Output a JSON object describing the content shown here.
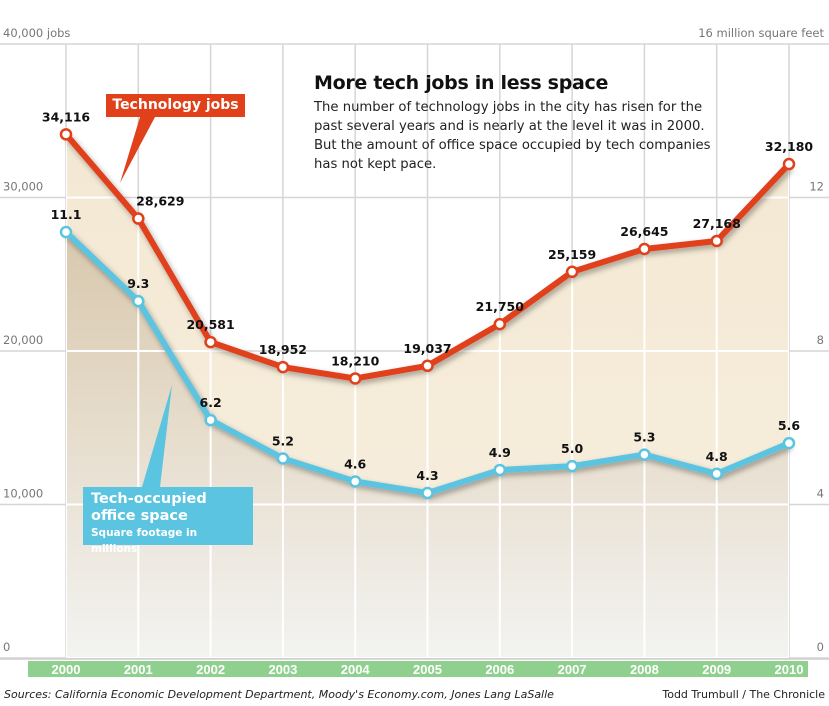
{
  "chart_data": {
    "type": "line",
    "title": "More tech jobs in less space",
    "subtitle": "The number of technology jobs in the city has risen for the past several years and is nearly at the level it was in 2000. But the amount of office space occupied by tech companies has not kept pace.",
    "x": [
      "2000",
      "2001",
      "2002",
      "2003",
      "2004",
      "2005",
      "2006",
      "2007",
      "2008",
      "2009",
      "2010"
    ],
    "left_axis": {
      "ylim": [
        0,
        40000
      ],
      "ticks": [
        "0",
        "10,000",
        "20,000",
        "30,000",
        "40,000 jobs"
      ],
      "values": [
        0,
        10000,
        20000,
        30000,
        40000
      ]
    },
    "right_axis": {
      "ylim": [
        0,
        16
      ],
      "ticks": [
        "0",
        "4",
        "8",
        "12",
        "16 million square feet"
      ],
      "values": [
        0,
        4,
        8,
        12,
        16
      ]
    },
    "series": [
      {
        "name": "Technology jobs",
        "axis": "left",
        "color": "#e0401a",
        "values": [
          34116,
          28629,
          20581,
          18952,
          18210,
          19037,
          21750,
          25159,
          26645,
          27168,
          32180
        ],
        "labels": [
          "34,116",
          "28,629",
          "20,581",
          "18,952",
          "18,210",
          "19,037",
          "21,750",
          "25,159",
          "26,645",
          "27,168",
          "32,180"
        ]
      },
      {
        "name": "Tech-occupied office space",
        "note": "Square footage in millions",
        "axis": "right",
        "color": "#5bc4e0",
        "values": [
          11.1,
          9.3,
          6.2,
          5.2,
          4.6,
          4.3,
          4.9,
          5.0,
          5.3,
          4.8,
          5.6
        ],
        "labels": [
          "11.1",
          "9.3",
          "6.2",
          "5.2",
          "4.6",
          "4.3",
          "4.9",
          "5.0",
          "5.3",
          "4.8",
          "5.6"
        ]
      }
    ],
    "grid": true,
    "axis_band_color": "#8fd08f"
  },
  "legend": {
    "jobs": "Technology jobs",
    "space_line1": "Tech-occupied",
    "space_line2": "office space",
    "space_note": "Square footage in millions"
  },
  "footer": {
    "sources": "Sources: California Economic Development Department, Moody's Economy.com, Jones Lang LaSalle",
    "credit": "Todd Trumbull / The Chronicle"
  }
}
